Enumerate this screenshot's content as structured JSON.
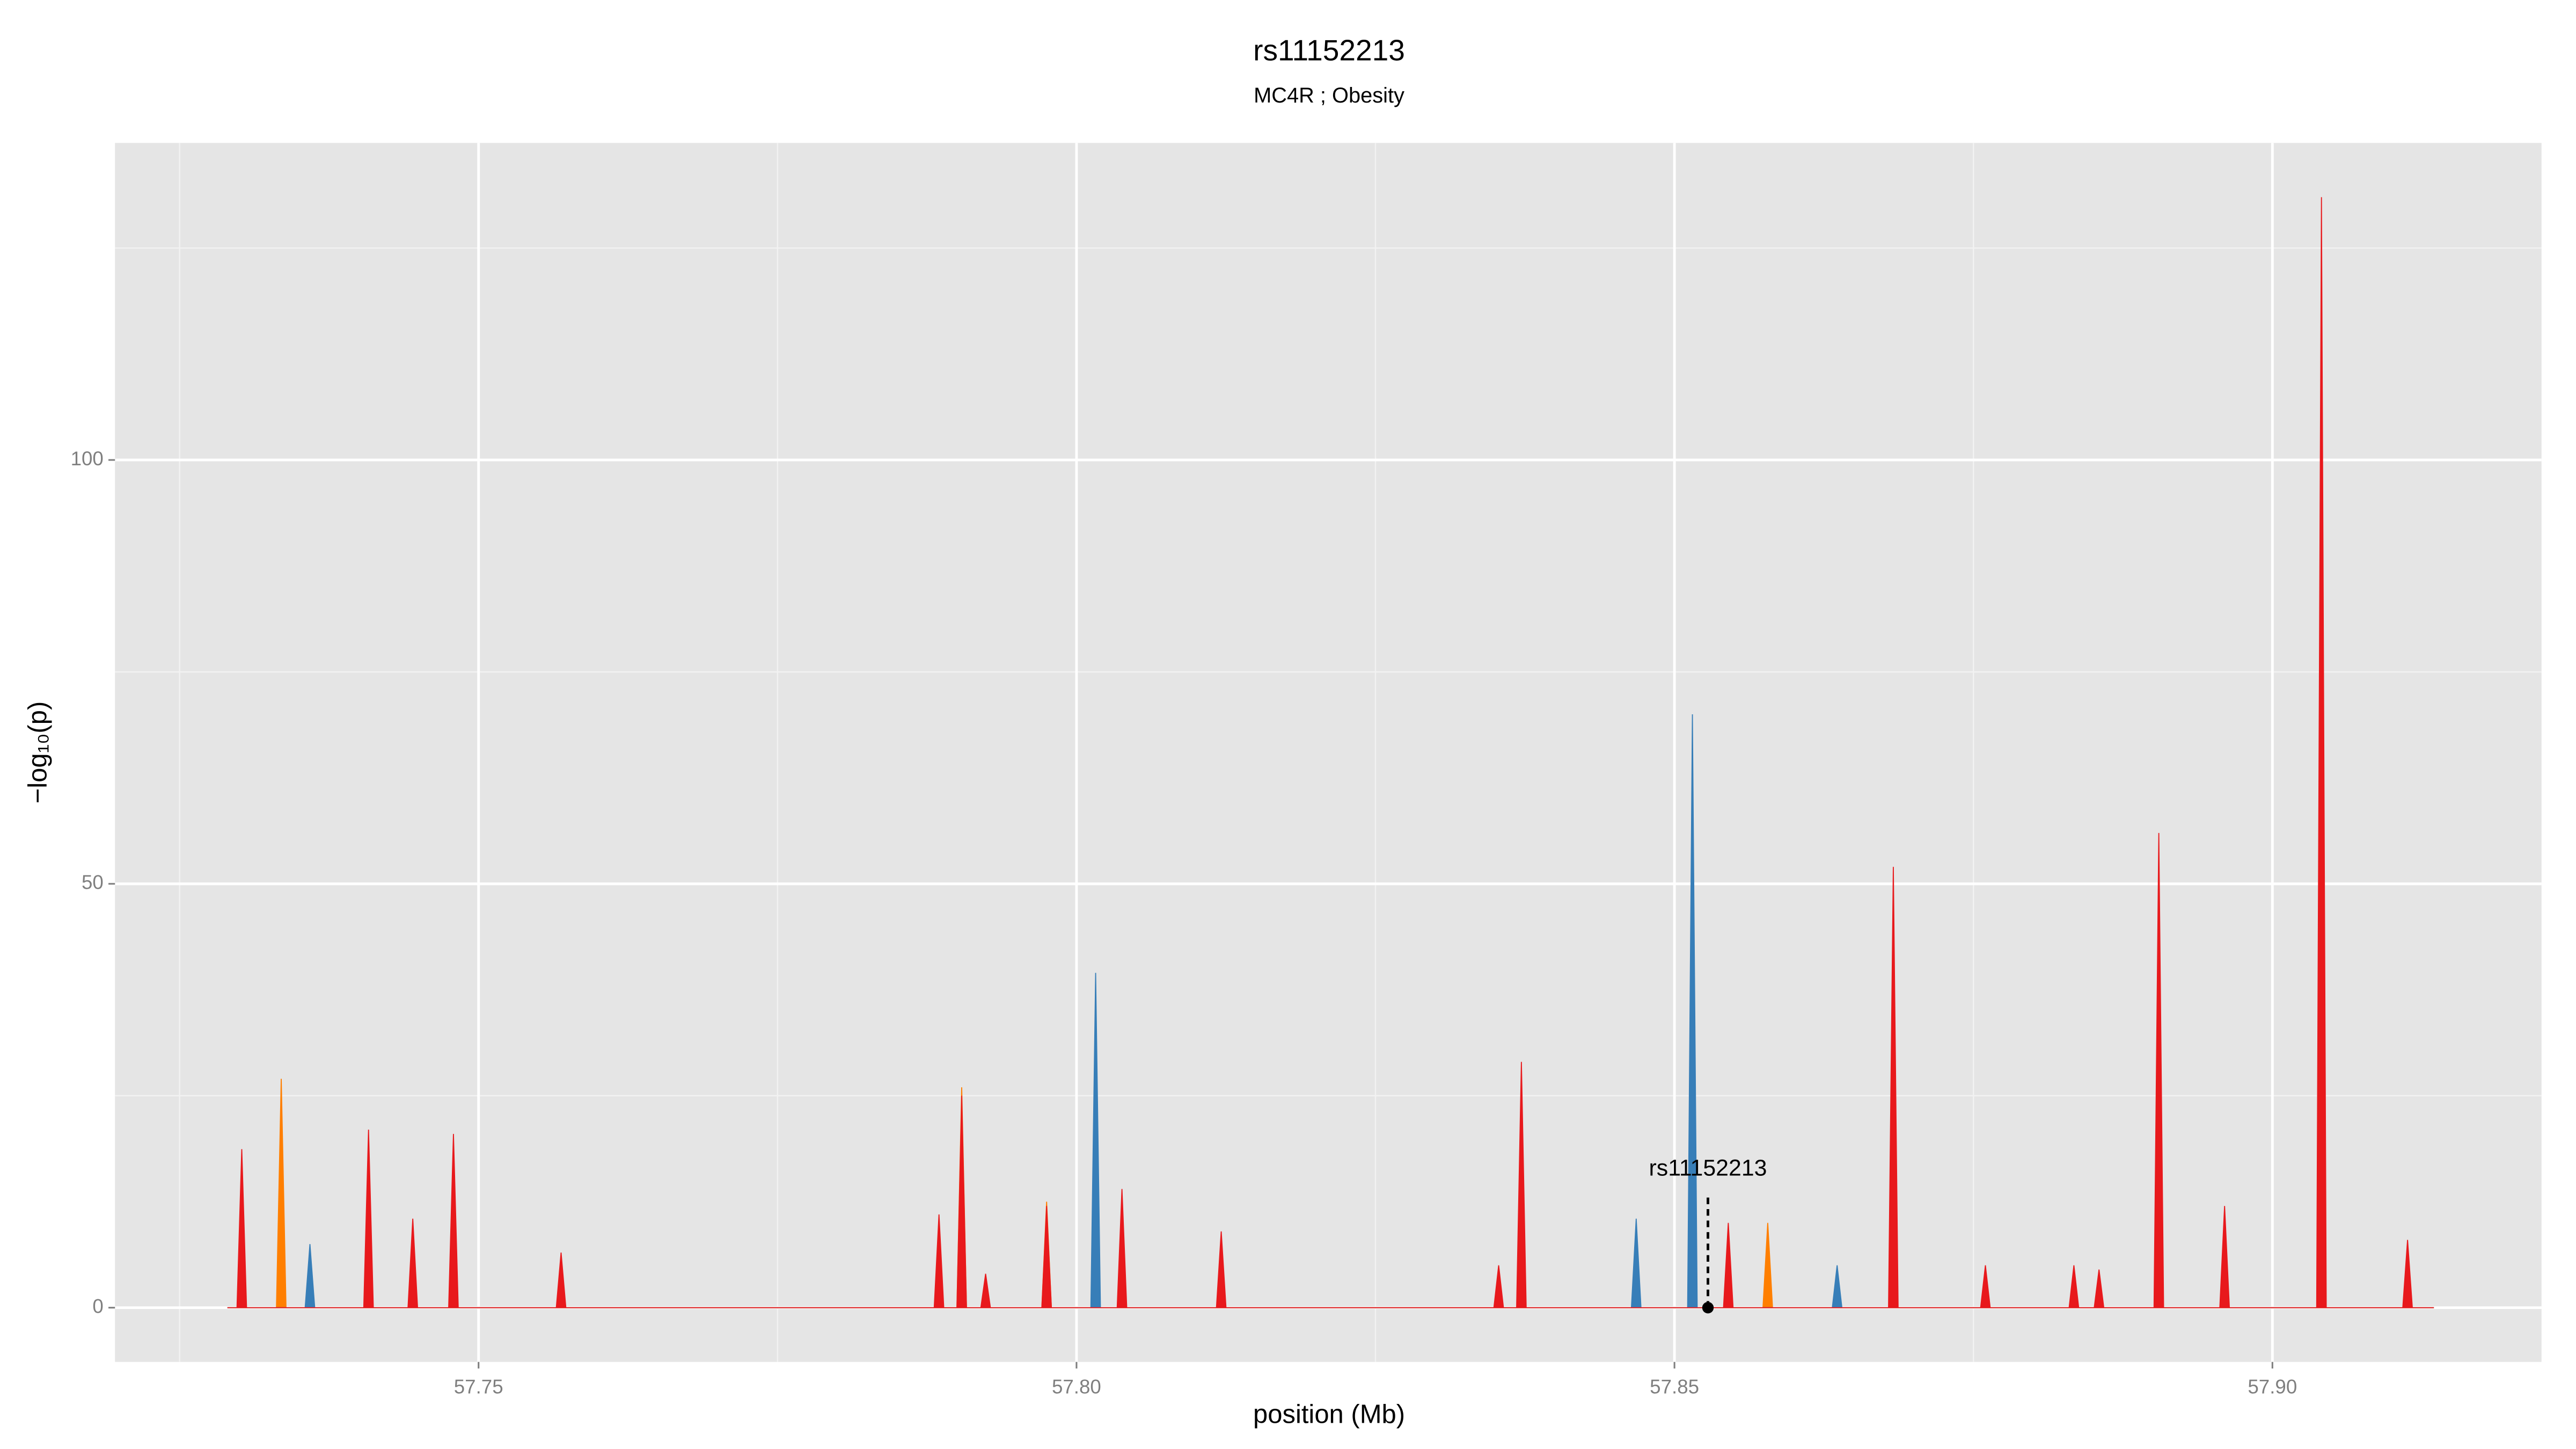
{
  "chart_data": {
    "type": "area",
    "title": "rs11152213",
    "subtitle": "MC4R ; Obesity",
    "x_label": "position (Mb)",
    "y_label": "−log₁₀(p)",
    "xlim": [
      57.7196,
      57.9225
    ],
    "ylim": [
      -6.4,
      137.4
    ],
    "xticks": [
      57.75,
      {
        "value": 57.8,
        "label": "57.80"
      },
      57.85,
      {
        "value": 57.9,
        "label": "57.90"
      }
    ],
    "yticks": [
      0,
      50,
      100
    ],
    "minor_xticks": [
      57.725,
      57.775,
      57.825,
      57.875
    ],
    "minor_yticks": [
      25,
      75,
      125
    ],
    "grid": true,
    "series": [
      {
        "color": "#ff7f00",
        "x": [
          57.729,
          57.7331,
          57.7335,
          57.7339,
          57.79,
          57.7904,
          57.7908,
          57.7971,
          57.7975,
          57.7979,
          57.8574,
          57.8578,
          57.8582,
          57.9135
        ],
        "values": [
          0,
          0,
          27,
          0,
          0,
          26,
          0,
          0,
          12.5,
          0,
          0,
          10,
          0,
          0
        ]
      },
      {
        "color": "#377eb8",
        "x": [
          57.729,
          57.7355,
          57.7359,
          57.7363,
          57.8012,
          57.8016,
          57.802,
          57.8464,
          57.8468,
          57.8472,
          57.8511,
          57.8515,
          57.8519,
          57.8632,
          57.8636,
          57.864,
          57.9135
        ],
        "values": [
          0,
          0,
          7.5,
          0,
          0,
          39.5,
          0,
          0,
          10.5,
          0,
          0,
          70,
          0,
          0,
          5,
          0,
          0
        ]
      },
      {
        "color": "#e8191c",
        "x": [
          57.729,
          57.7298,
          57.7302,
          57.7306,
          57.7404,
          57.7408,
          57.7412,
          57.7441,
          57.7445,
          57.7449,
          57.7475,
          57.7479,
          57.7483,
          57.7565,
          57.7569,
          57.7573,
          57.7881,
          57.7885,
          57.7889,
          57.79,
          57.7904,
          57.7908,
          57.792,
          57.7924,
          57.7928,
          57.7971,
          57.7975,
          57.7979,
          57.8034,
          57.8038,
          57.8042,
          57.8117,
          57.8121,
          57.8125,
          57.8349,
          57.8353,
          57.8357,
          57.8368,
          57.8372,
          57.8376,
          57.8541,
          57.8545,
          57.8549,
          57.8679,
          57.8683,
          57.8687,
          57.8756,
          57.876,
          57.8764,
          57.883,
          57.8834,
          57.8838,
          57.8851,
          57.8855,
          57.8859,
          57.8901,
          57.8905,
          57.8909,
          57.8956,
          57.896,
          57.8964,
          57.9037,
          57.9041,
          57.9045,
          57.9109,
          57.9113,
          57.9117,
          57.9135
        ],
        "values": [
          0,
          0,
          18.7,
          0,
          0,
          21,
          0,
          0,
          10.5,
          0,
          0,
          20.5,
          0,
          0,
          6.5,
          0,
          0,
          11,
          0,
          0,
          25,
          0,
          0,
          4,
          0,
          0,
          12,
          0,
          0,
          14,
          0,
          0,
          9,
          0,
          0,
          5,
          0,
          0,
          29,
          0,
          0,
          10,
          0,
          0,
          52,
          0,
          0,
          5,
          0,
          0,
          5,
          0,
          0,
          4.5,
          0,
          0,
          56,
          0,
          0,
          12,
          0,
          0,
          131,
          0,
          0,
          8,
          0,
          0
        ]
      }
    ],
    "annotation": {
      "label": "rs11152213",
      "x": 57.8528,
      "y": 0,
      "label_y": 16.3
    }
  }
}
